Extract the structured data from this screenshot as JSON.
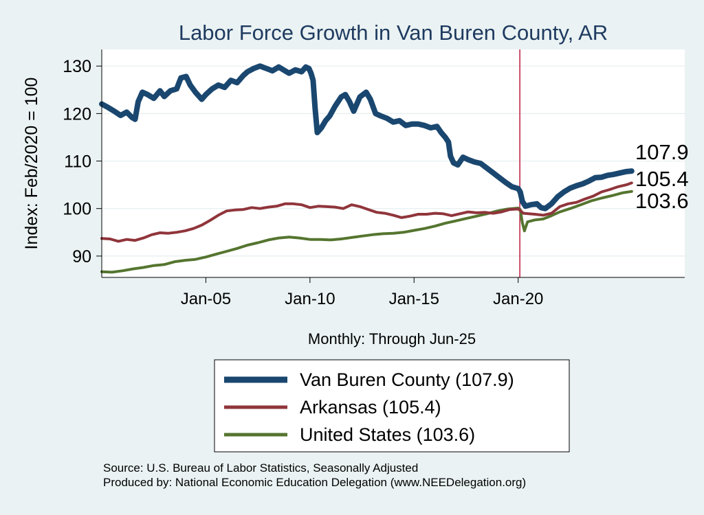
{
  "chart_data": {
    "type": "line",
    "title": "Labor Force Growth in Van Buren  County, AR",
    "xlabel": "Monthly: Through Jun-25",
    "ylabel": "Index: Feb/2020 = 100",
    "xlim": [
      2000.0,
      2028.0
    ],
    "ylim": [
      85.5,
      133.5
    ],
    "yticks": [
      90,
      100,
      110,
      120,
      130
    ],
    "xticks": [
      {
        "value": 2005.0,
        "label": "Jan-05"
      },
      {
        "value": 2010.0,
        "label": "Jan-10"
      },
      {
        "value": 2015.0,
        "label": "Jan-15"
      },
      {
        "value": 2020.0,
        "label": "Jan-20"
      }
    ],
    "reference_line": {
      "x": 2020.08,
      "color": "#c0264a"
    },
    "grid": true,
    "legend_position": "bottom",
    "series": [
      {
        "name": "Van Buren  County",
        "legend_label": "Van Buren  County (107.9)",
        "end_label": "107.9",
        "color": "#1a476f",
        "width": 8,
        "points": [
          [
            2000.0,
            122.0
          ],
          [
            2000.3,
            121.3
          ],
          [
            2000.6,
            120.5
          ],
          [
            2000.9,
            119.6
          ],
          [
            2001.2,
            120.3
          ],
          [
            2001.45,
            119.2
          ],
          [
            2001.6,
            118.8
          ],
          [
            2001.75,
            122.5
          ],
          [
            2001.95,
            124.5
          ],
          [
            2002.2,
            124.0
          ],
          [
            2002.5,
            123.2
          ],
          [
            2002.8,
            124.8
          ],
          [
            2003.0,
            123.6
          ],
          [
            2003.3,
            124.8
          ],
          [
            2003.6,
            125.2
          ],
          [
            2003.8,
            127.5
          ],
          [
            2004.05,
            127.8
          ],
          [
            2004.25,
            126.0
          ],
          [
            2004.5,
            124.5
          ],
          [
            2004.8,
            123.0
          ],
          [
            2005.0,
            124.0
          ],
          [
            2005.3,
            125.2
          ],
          [
            2005.6,
            126.0
          ],
          [
            2005.9,
            125.5
          ],
          [
            2006.2,
            127.0
          ],
          [
            2006.5,
            126.5
          ],
          [
            2006.8,
            128.0
          ],
          [
            2007.0,
            128.8
          ],
          [
            2007.3,
            129.5
          ],
          [
            2007.6,
            130.0
          ],
          [
            2007.9,
            129.5
          ],
          [
            2008.2,
            129.0
          ],
          [
            2008.5,
            129.8
          ],
          [
            2008.8,
            129.0
          ],
          [
            2009.0,
            128.5
          ],
          [
            2009.3,
            129.2
          ],
          [
            2009.6,
            128.8
          ],
          [
            2009.8,
            129.8
          ],
          [
            2009.95,
            129.5
          ],
          [
            2010.05,
            128.5
          ],
          [
            2010.15,
            127.0
          ],
          [
            2010.25,
            121.0
          ],
          [
            2010.35,
            116.0
          ],
          [
            2010.55,
            117.0
          ],
          [
            2010.75,
            118.5
          ],
          [
            2010.95,
            119.5
          ],
          [
            2011.2,
            121.5
          ],
          [
            2011.5,
            123.5
          ],
          [
            2011.7,
            124.0
          ],
          [
            2011.9,
            122.5
          ],
          [
            2012.1,
            120.5
          ],
          [
            2012.4,
            123.5
          ],
          [
            2012.7,
            124.5
          ],
          [
            2012.9,
            123.0
          ],
          [
            2013.15,
            120.0
          ],
          [
            2013.4,
            119.5
          ],
          [
            2013.7,
            119.0
          ],
          [
            2014.0,
            118.2
          ],
          [
            2014.3,
            118.5
          ],
          [
            2014.6,
            117.5
          ],
          [
            2014.9,
            117.8
          ],
          [
            2015.2,
            117.8
          ],
          [
            2015.5,
            117.5
          ],
          [
            2015.8,
            117.0
          ],
          [
            2016.1,
            117.3
          ],
          [
            2016.3,
            116.0
          ],
          [
            2016.5,
            115.0
          ],
          [
            2016.65,
            114.0
          ],
          [
            2016.75,
            111.0
          ],
          [
            2016.9,
            109.6
          ],
          [
            2017.1,
            109.2
          ],
          [
            2017.35,
            110.8
          ],
          [
            2017.6,
            110.3
          ],
          [
            2017.9,
            109.8
          ],
          [
            2018.2,
            109.5
          ],
          [
            2018.5,
            108.5
          ],
          [
            2018.8,
            107.5
          ],
          [
            2019.1,
            106.5
          ],
          [
            2019.4,
            105.5
          ],
          [
            2019.7,
            104.6
          ],
          [
            2020.0,
            104.2
          ],
          [
            2020.1,
            103.5
          ],
          [
            2020.2,
            101.5
          ],
          [
            2020.35,
            100.5
          ],
          [
            2020.6,
            100.8
          ],
          [
            2020.9,
            101.0
          ],
          [
            2021.1,
            100.2
          ],
          [
            2021.3,
            100.0
          ],
          [
            2021.6,
            101.0
          ],
          [
            2021.9,
            102.5
          ],
          [
            2022.2,
            103.5
          ],
          [
            2022.5,
            104.3
          ],
          [
            2022.8,
            104.8
          ],
          [
            2023.1,
            105.2
          ],
          [
            2023.4,
            105.8
          ],
          [
            2023.7,
            106.5
          ],
          [
            2024.0,
            106.6
          ],
          [
            2024.3,
            107.0
          ],
          [
            2024.6,
            107.2
          ],
          [
            2024.9,
            107.5
          ],
          [
            2025.2,
            107.8
          ],
          [
            2025.45,
            107.9
          ]
        ]
      },
      {
        "name": "Arkansas",
        "legend_label": "Arkansas (105.4)",
        "end_label": "105.4",
        "color": "#90353b",
        "width": 4,
        "points": [
          [
            2000.0,
            93.7
          ],
          [
            2000.4,
            93.6
          ],
          [
            2000.8,
            93.1
          ],
          [
            2001.2,
            93.5
          ],
          [
            2001.6,
            93.3
          ],
          [
            2002.0,
            93.8
          ],
          [
            2002.4,
            94.5
          ],
          [
            2002.8,
            94.9
          ],
          [
            2003.2,
            94.8
          ],
          [
            2003.6,
            95.0
          ],
          [
            2004.0,
            95.3
          ],
          [
            2004.4,
            95.8
          ],
          [
            2004.8,
            96.5
          ],
          [
            2005.2,
            97.5
          ],
          [
            2005.6,
            98.6
          ],
          [
            2006.0,
            99.5
          ],
          [
            2006.4,
            99.7
          ],
          [
            2006.8,
            99.8
          ],
          [
            2007.2,
            100.2
          ],
          [
            2007.6,
            100.0
          ],
          [
            2008.0,
            100.3
          ],
          [
            2008.4,
            100.5
          ],
          [
            2008.8,
            101.0
          ],
          [
            2009.2,
            101.0
          ],
          [
            2009.6,
            100.8
          ],
          [
            2010.0,
            100.2
          ],
          [
            2010.4,
            100.5
          ],
          [
            2010.8,
            100.4
          ],
          [
            2011.2,
            100.3
          ],
          [
            2011.6,
            100.0
          ],
          [
            2012.0,
            100.8
          ],
          [
            2012.4,
            100.4
          ],
          [
            2012.8,
            99.8
          ],
          [
            2013.2,
            99.2
          ],
          [
            2013.6,
            99.0
          ],
          [
            2014.0,
            98.6
          ],
          [
            2014.4,
            98.1
          ],
          [
            2014.8,
            98.4
          ],
          [
            2015.2,
            98.8
          ],
          [
            2015.6,
            98.8
          ],
          [
            2016.0,
            99.0
          ],
          [
            2016.4,
            98.9
          ],
          [
            2016.8,
            98.5
          ],
          [
            2017.2,
            98.9
          ],
          [
            2017.6,
            99.3
          ],
          [
            2018.0,
            99.1
          ],
          [
            2018.4,
            99.2
          ],
          [
            2018.8,
            99.0
          ],
          [
            2019.2,
            99.3
          ],
          [
            2019.6,
            99.8
          ],
          [
            2020.0,
            99.9
          ],
          [
            2020.1,
            99.6
          ],
          [
            2020.25,
            99.0
          ],
          [
            2020.5,
            98.9
          ],
          [
            2020.8,
            98.8
          ],
          [
            2021.2,
            98.6
          ],
          [
            2021.6,
            99.0
          ],
          [
            2022.0,
            100.4
          ],
          [
            2022.4,
            101.0
          ],
          [
            2022.8,
            101.3
          ],
          [
            2023.2,
            102.0
          ],
          [
            2023.6,
            102.6
          ],
          [
            2024.0,
            103.5
          ],
          [
            2024.4,
            104.0
          ],
          [
            2024.8,
            104.6
          ],
          [
            2025.2,
            105.0
          ],
          [
            2025.45,
            105.4
          ]
        ]
      },
      {
        "name": "United States",
        "legend_label": "United States (103.6)",
        "end_label": "103.6",
        "color": "#55752f",
        "width": 4,
        "points": [
          [
            2000.0,
            86.7
          ],
          [
            2000.5,
            86.6
          ],
          [
            2001.0,
            86.9
          ],
          [
            2001.5,
            87.3
          ],
          [
            2002.0,
            87.6
          ],
          [
            2002.5,
            88.0
          ],
          [
            2003.0,
            88.2
          ],
          [
            2003.5,
            88.8
          ],
          [
            2004.0,
            89.1
          ],
          [
            2004.5,
            89.3
          ],
          [
            2005.0,
            89.8
          ],
          [
            2005.5,
            90.4
          ],
          [
            2006.0,
            91.0
          ],
          [
            2006.5,
            91.6
          ],
          [
            2007.0,
            92.3
          ],
          [
            2007.5,
            92.8
          ],
          [
            2008.0,
            93.4
          ],
          [
            2008.5,
            93.8
          ],
          [
            2009.0,
            94.0
          ],
          [
            2009.5,
            93.8
          ],
          [
            2010.0,
            93.5
          ],
          [
            2010.5,
            93.5
          ],
          [
            2011.0,
            93.4
          ],
          [
            2011.5,
            93.6
          ],
          [
            2012.0,
            93.9
          ],
          [
            2012.5,
            94.2
          ],
          [
            2013.0,
            94.5
          ],
          [
            2013.5,
            94.7
          ],
          [
            2014.0,
            94.8
          ],
          [
            2014.5,
            95.0
          ],
          [
            2015.0,
            95.4
          ],
          [
            2015.5,
            95.8
          ],
          [
            2016.0,
            96.3
          ],
          [
            2016.5,
            96.9
          ],
          [
            2017.0,
            97.4
          ],
          [
            2017.5,
            97.9
          ],
          [
            2018.0,
            98.4
          ],
          [
            2018.5,
            98.9
          ],
          [
            2019.0,
            99.5
          ],
          [
            2019.5,
            99.9
          ],
          [
            2020.0,
            100.1
          ],
          [
            2020.1,
            99.8
          ],
          [
            2020.2,
            97.0
          ],
          [
            2020.3,
            95.3
          ],
          [
            2020.45,
            97.2
          ],
          [
            2020.8,
            97.6
          ],
          [
            2021.2,
            97.8
          ],
          [
            2021.6,
            98.5
          ],
          [
            2022.0,
            99.3
          ],
          [
            2022.5,
            100.0
          ],
          [
            2023.0,
            100.8
          ],
          [
            2023.5,
            101.6
          ],
          [
            2024.0,
            102.2
          ],
          [
            2024.5,
            102.7
          ],
          [
            2025.0,
            103.3
          ],
          [
            2025.45,
            103.6
          ]
        ]
      }
    ]
  },
  "notes": {
    "source": "Source: U.S. Bureau of Labor Statistics, Seasonally Adjusted",
    "produced_by": "Produced by: National Economic Education Delegation (www.NEEDelegation.org)"
  }
}
